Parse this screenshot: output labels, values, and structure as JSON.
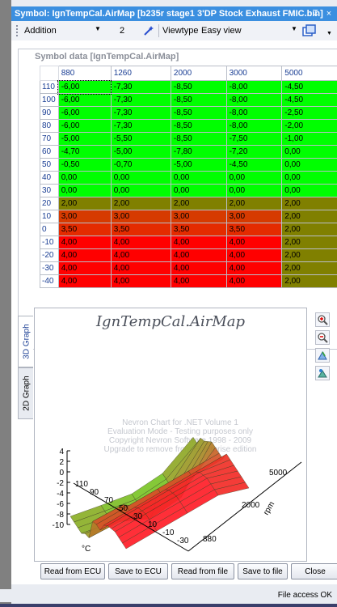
{
  "window": {
    "title": "Symbol: IgnTempCal.AirMap [b235r stage1 3'DP Stock Exhaust FMIC.bin]",
    "pin_glyph": "↧",
    "close_glyph": "×"
  },
  "toolbar": {
    "mode_value": "Addition",
    "step_value": "2",
    "viewtype_label": "Viewtype",
    "viewtype_value": "Easy view",
    "dropdown_glyph": "▼"
  },
  "symbol_data": {
    "title": "Symbol data [IgnTempCal.AirMap]",
    "columns": [
      "880",
      "1260",
      "2000",
      "3000",
      "5000"
    ],
    "rows": [
      {
        "label": "110",
        "values": [
          "-6,00",
          "-7,30",
          "-8,50",
          "-8,00",
          "-4,50"
        ],
        "colors": [
          "#00ff00",
          "#00ff00",
          "#00ff00",
          "#00ff00",
          "#00ff00"
        ]
      },
      {
        "label": "100",
        "values": [
          "-6,00",
          "-7,30",
          "-8,50",
          "-8,00",
          "-4,50"
        ],
        "colors": [
          "#00ff00",
          "#00ff00",
          "#00ff00",
          "#00ff00",
          "#00ff00"
        ]
      },
      {
        "label": "90",
        "values": [
          "-6,00",
          "-7,30",
          "-8,50",
          "-8,00",
          "-2,50"
        ],
        "colors": [
          "#00ff00",
          "#00ff00",
          "#00ff00",
          "#00ff00",
          "#00ff00"
        ]
      },
      {
        "label": "80",
        "values": [
          "-6,00",
          "-7,30",
          "-8,50",
          "-8,00",
          "-2,00"
        ],
        "colors": [
          "#00ff00",
          "#00ff00",
          "#00ff00",
          "#00ff00",
          "#00ff00"
        ]
      },
      {
        "label": "70",
        "values": [
          "-5,00",
          "-5,50",
          "-8,50",
          "-7,50",
          "-1,00"
        ],
        "colors": [
          "#00ff00",
          "#00ff00",
          "#00ff00",
          "#00ff00",
          "#00ff00"
        ]
      },
      {
        "label": "60",
        "values": [
          "-4,70",
          "-5,00",
          "-7,80",
          "-7,20",
          "0,00"
        ],
        "colors": [
          "#00ff00",
          "#00ff00",
          "#00ff00",
          "#00ff00",
          "#00ff00"
        ]
      },
      {
        "label": "50",
        "values": [
          "-0,50",
          "-0,70",
          "-5,00",
          "-4,50",
          "0,00"
        ],
        "colors": [
          "#00ff00",
          "#00ff00",
          "#00ff00",
          "#00ff00",
          "#00ff00"
        ]
      },
      {
        "label": "40",
        "values": [
          "0,00",
          "0,00",
          "0,00",
          "0,00",
          "0,00"
        ],
        "colors": [
          "#00ff00",
          "#00ff00",
          "#00ff00",
          "#00ff00",
          "#00ff00"
        ]
      },
      {
        "label": "30",
        "values": [
          "0,00",
          "0,00",
          "0,00",
          "0,00",
          "0,00"
        ],
        "colors": [
          "#00ff00",
          "#00ff00",
          "#00ff00",
          "#00ff00",
          "#00ff00"
        ]
      },
      {
        "label": "20",
        "values": [
          "2,00",
          "2,00",
          "2,00",
          "2,00",
          "2,00"
        ],
        "colors": [
          "#808000",
          "#808000",
          "#808000",
          "#808000",
          "#808000"
        ]
      },
      {
        "label": "10",
        "values": [
          "3,00",
          "3,00",
          "3,00",
          "3,00",
          "2,00"
        ],
        "colors": [
          "#d63a00",
          "#d63a00",
          "#d63a00",
          "#d63a00",
          "#808000"
        ]
      },
      {
        "label": "0",
        "values": [
          "3,50",
          "3,50",
          "3,50",
          "3,50",
          "2,00"
        ],
        "colors": [
          "#e42b00",
          "#e42b00",
          "#e42b00",
          "#e42b00",
          "#808000"
        ]
      },
      {
        "label": "-10",
        "values": [
          "4,00",
          "4,00",
          "4,00",
          "4,00",
          "2,00"
        ],
        "colors": [
          "#ff0000",
          "#ff0000",
          "#ff0000",
          "#ff0000",
          "#808000"
        ]
      },
      {
        "label": "-20",
        "values": [
          "4,00",
          "4,00",
          "4,00",
          "4,00",
          "2,00"
        ],
        "colors": [
          "#ff0000",
          "#ff0000",
          "#ff0000",
          "#ff0000",
          "#808000"
        ]
      },
      {
        "label": "-30",
        "values": [
          "4,00",
          "4,00",
          "4,00",
          "4,00",
          "2,00"
        ],
        "colors": [
          "#ff0000",
          "#ff0000",
          "#ff0000",
          "#ff0000",
          "#808000"
        ]
      },
      {
        "label": "-40",
        "values": [
          "4,00",
          "4,00",
          "4,00",
          "4,00",
          "2,00"
        ],
        "colors": [
          "#ff0000",
          "#ff0000",
          "#ff0000",
          "#ff0000",
          "#808000"
        ]
      }
    ]
  },
  "graph": {
    "tab_3d": "3D Graph",
    "tab_2d": "2D Graph",
    "title": "IgnTempCal.AirMap",
    "watermark_lines": [
      "Nevron Chart for .NET Volume 1",
      "Evaluation Mode - Testing purposes only",
      "Copyright Nevron Software 1998 - 2009",
      "Upgrade to remove from Enterprise edition"
    ],
    "z_ticks": [
      "4",
      "2",
      "0",
      "-2",
      "-4",
      "-6",
      "-8",
      "-10"
    ],
    "y_ticks": [
      "110",
      "90",
      "70",
      "50",
      "30",
      "10",
      "-10",
      "-30"
    ],
    "y_axis_label": "°C",
    "x_ticks": [
      "880",
      "2000",
      "5000"
    ],
    "x_axis_label": "rpm",
    "tools": [
      "zoom-in-icon",
      "zoom-out-icon",
      "rotate-icon",
      "camera-icon"
    ]
  },
  "buttons": {
    "read_ecu": "Read from ECU",
    "save_ecu": "Save to ECU",
    "read_file": "Read from file",
    "save_file": "Save to file",
    "close": "Close"
  },
  "status": {
    "text": "File access OK"
  }
}
